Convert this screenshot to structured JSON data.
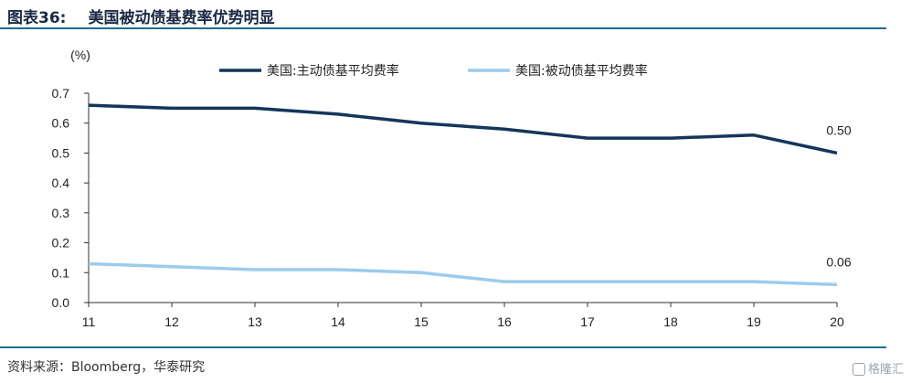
{
  "header": {
    "figure_number": "图表36:",
    "title": "美国被动债基费率优势明显"
  },
  "footer": {
    "source": "资料来源：Bloomberg，华泰研究"
  },
  "watermark": {
    "text": "格隆汇"
  },
  "chart_data": {
    "type": "line",
    "unit": "(%)",
    "x": [
      "11",
      "12",
      "13",
      "14",
      "15",
      "16",
      "17",
      "18",
      "19",
      "20"
    ],
    "ylim": [
      0.0,
      0.7
    ],
    "yticks": [
      "0.0",
      "0.1",
      "0.2",
      "0.3",
      "0.4",
      "0.5",
      "0.6",
      "0.7"
    ],
    "grid": false,
    "legend_position": "top",
    "series": [
      {
        "name": "美国:主动债基平均费率",
        "color": "#14365a",
        "values": [
          0.66,
          0.65,
          0.65,
          0.63,
          0.6,
          0.58,
          0.55,
          0.55,
          0.56,
          0.5
        ],
        "end_label": "0.50"
      },
      {
        "name": "美国:被动债基平均费率",
        "color": "#9ccbee",
        "values": [
          0.13,
          0.12,
          0.11,
          0.11,
          0.1,
          0.07,
          0.07,
          0.07,
          0.07,
          0.06
        ],
        "end_label": "0.06"
      }
    ]
  }
}
